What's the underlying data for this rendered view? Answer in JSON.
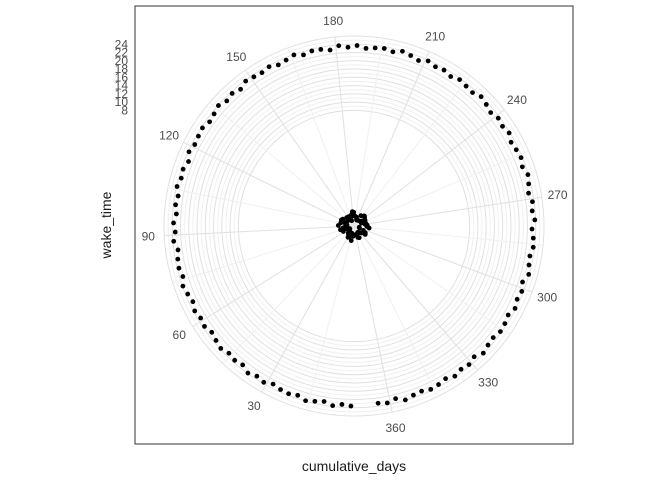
{
  "chart_data": {
    "type": "scatter",
    "coord": "polar",
    "xlabel": "cumulative_days",
    "ylabel": "wake_time",
    "grid": true,
    "theta_range": [
      0,
      372
    ],
    "theta_ticks": [
      30,
      60,
      90,
      120,
      150,
      180,
      210,
      240,
      270,
      300,
      330,
      360
    ],
    "r_range": [
      -20,
      26
    ],
    "r_ticks": [
      8,
      10,
      12,
      14,
      16,
      18,
      20,
      22,
      24
    ],
    "point_color": "#000000",
    "series": [
      {
        "description": "outer ring: cumulative_days vs wake_time (approx.)",
        "x": [
          1,
          4,
          7,
          10,
          13,
          16,
          19,
          22,
          25,
          28,
          31,
          34,
          37,
          40,
          43,
          46,
          49,
          52,
          55,
          58,
          61,
          64,
          67,
          70,
          73,
          76,
          79,
          82,
          85,
          88,
          91,
          94,
          97,
          100,
          103,
          106,
          109,
          112,
          115,
          118,
          121,
          124,
          127,
          130,
          133,
          136,
          139,
          142,
          145,
          148,
          151,
          154,
          157,
          160,
          163,
          166,
          169,
          172,
          175,
          178,
          181,
          184,
          187,
          190,
          193,
          196,
          199,
          202,
          205,
          208,
          211,
          214,
          217,
          220,
          223,
          226,
          229,
          232,
          235,
          238,
          241,
          244,
          247,
          250,
          253,
          256,
          259,
          262,
          265,
          268,
          271,
          274,
          277,
          280,
          283,
          286,
          289,
          292,
          295,
          298,
          301,
          304,
          307,
          310,
          313,
          316,
          319,
          322,
          325,
          328,
          331,
          334,
          337,
          340,
          343,
          346,
          349,
          352,
          355,
          358,
          361,
          364
        ],
        "y": [
          23.6,
          23.3,
          23.8,
          23.1,
          23.5,
          23.9,
          23.2,
          23.6,
          23.4,
          23.0,
          23.7,
          23.3,
          23.9,
          23.1,
          23.5,
          23.2,
          23.8,
          23.4,
          23.0,
          23.6,
          23.3,
          23.7,
          23.1,
          23.5,
          23.9,
          23.2,
          23.6,
          23.4,
          23.0,
          23.8,
          23.3,
          23.7,
          23.1,
          23.5,
          23.2,
          23.9,
          23.4,
          23.6,
          23.0,
          23.8,
          23.3,
          23.5,
          23.7,
          23.1,
          23.4,
          23.9,
          23.2,
          23.6,
          23.0,
          23.8,
          23.5,
          23.3,
          23.7,
          23.1,
          23.4,
          23.9,
          23.2,
          23.6,
          23.5,
          23.0,
          23.8,
          23.3,
          23.7,
          23.1,
          23.4,
          23.6,
          23.2,
          23.9,
          23.5,
          23.0,
          23.8,
          23.3,
          23.6,
          23.1,
          23.7,
          23.4,
          23.2,
          23.9,
          23.5,
          23.0,
          23.6,
          23.3,
          23.8,
          23.1,
          23.4,
          23.7,
          23.2,
          23.9,
          23.5,
          23.0,
          23.6,
          23.3,
          23.8,
          23.1,
          23.5,
          23.7,
          23.2,
          23.4,
          23.9,
          23.0,
          23.6,
          23.3,
          23.8,
          23.1,
          23.5,
          23.7,
          23.2,
          23.4,
          23.9,
          23.0,
          23.6,
          23.3,
          23.8,
          23.1,
          23.5,
          23.7,
          23.2,
          23.4,
          23.9,
          23.0,
          23.6,
          23.3
        ]
      },
      {
        "description": "central cluster near the pole (approx.)",
        "x": [
          5,
          17,
          29,
          41,
          53,
          65,
          77,
          89,
          101,
          113,
          125,
          137,
          149,
          161,
          173,
          185,
          197,
          209,
          221,
          233,
          245,
          257,
          269,
          281,
          293,
          305,
          317,
          329,
          341,
          353,
          11,
          35,
          59,
          83,
          107,
          131,
          155,
          179,
          203,
          227,
          251,
          275,
          299,
          323,
          347,
          23,
          71,
          119,
          167,
          215,
          263,
          311,
          359,
          47,
          143,
          239,
          335,
          95,
          191,
          287
        ],
        "y": [
          -17.5,
          -18.2,
          -16.9,
          -17.8,
          -18.5,
          -17.1,
          -16.6,
          -17.9,
          -18.3,
          -17.4,
          -16.8,
          -18.0,
          -17.6,
          -18.6,
          -17.2,
          -16.7,
          -17.7,
          -18.4,
          -17.0,
          -16.5,
          -17.8,
          -18.1,
          -17.3,
          -16.9,
          -18.7,
          -17.5,
          -16.6,
          -17.9,
          -18.2,
          -17.1,
          -16.4,
          -17.6,
          -18.8,
          -17.3,
          -16.7,
          -18.0,
          -17.4,
          -16.5,
          -17.8,
          -18.3,
          -17.0,
          -16.8,
          -18.6,
          -17.5,
          -16.9,
          -17.2,
          -18.1,
          -16.6,
          -17.7,
          -18.4,
          -17.1,
          -16.8,
          -17.9,
          -18.5,
          -17.3,
          -16.7,
          -18.0,
          -16.2,
          -17.6,
          -16.3
        ]
      }
    ]
  }
}
